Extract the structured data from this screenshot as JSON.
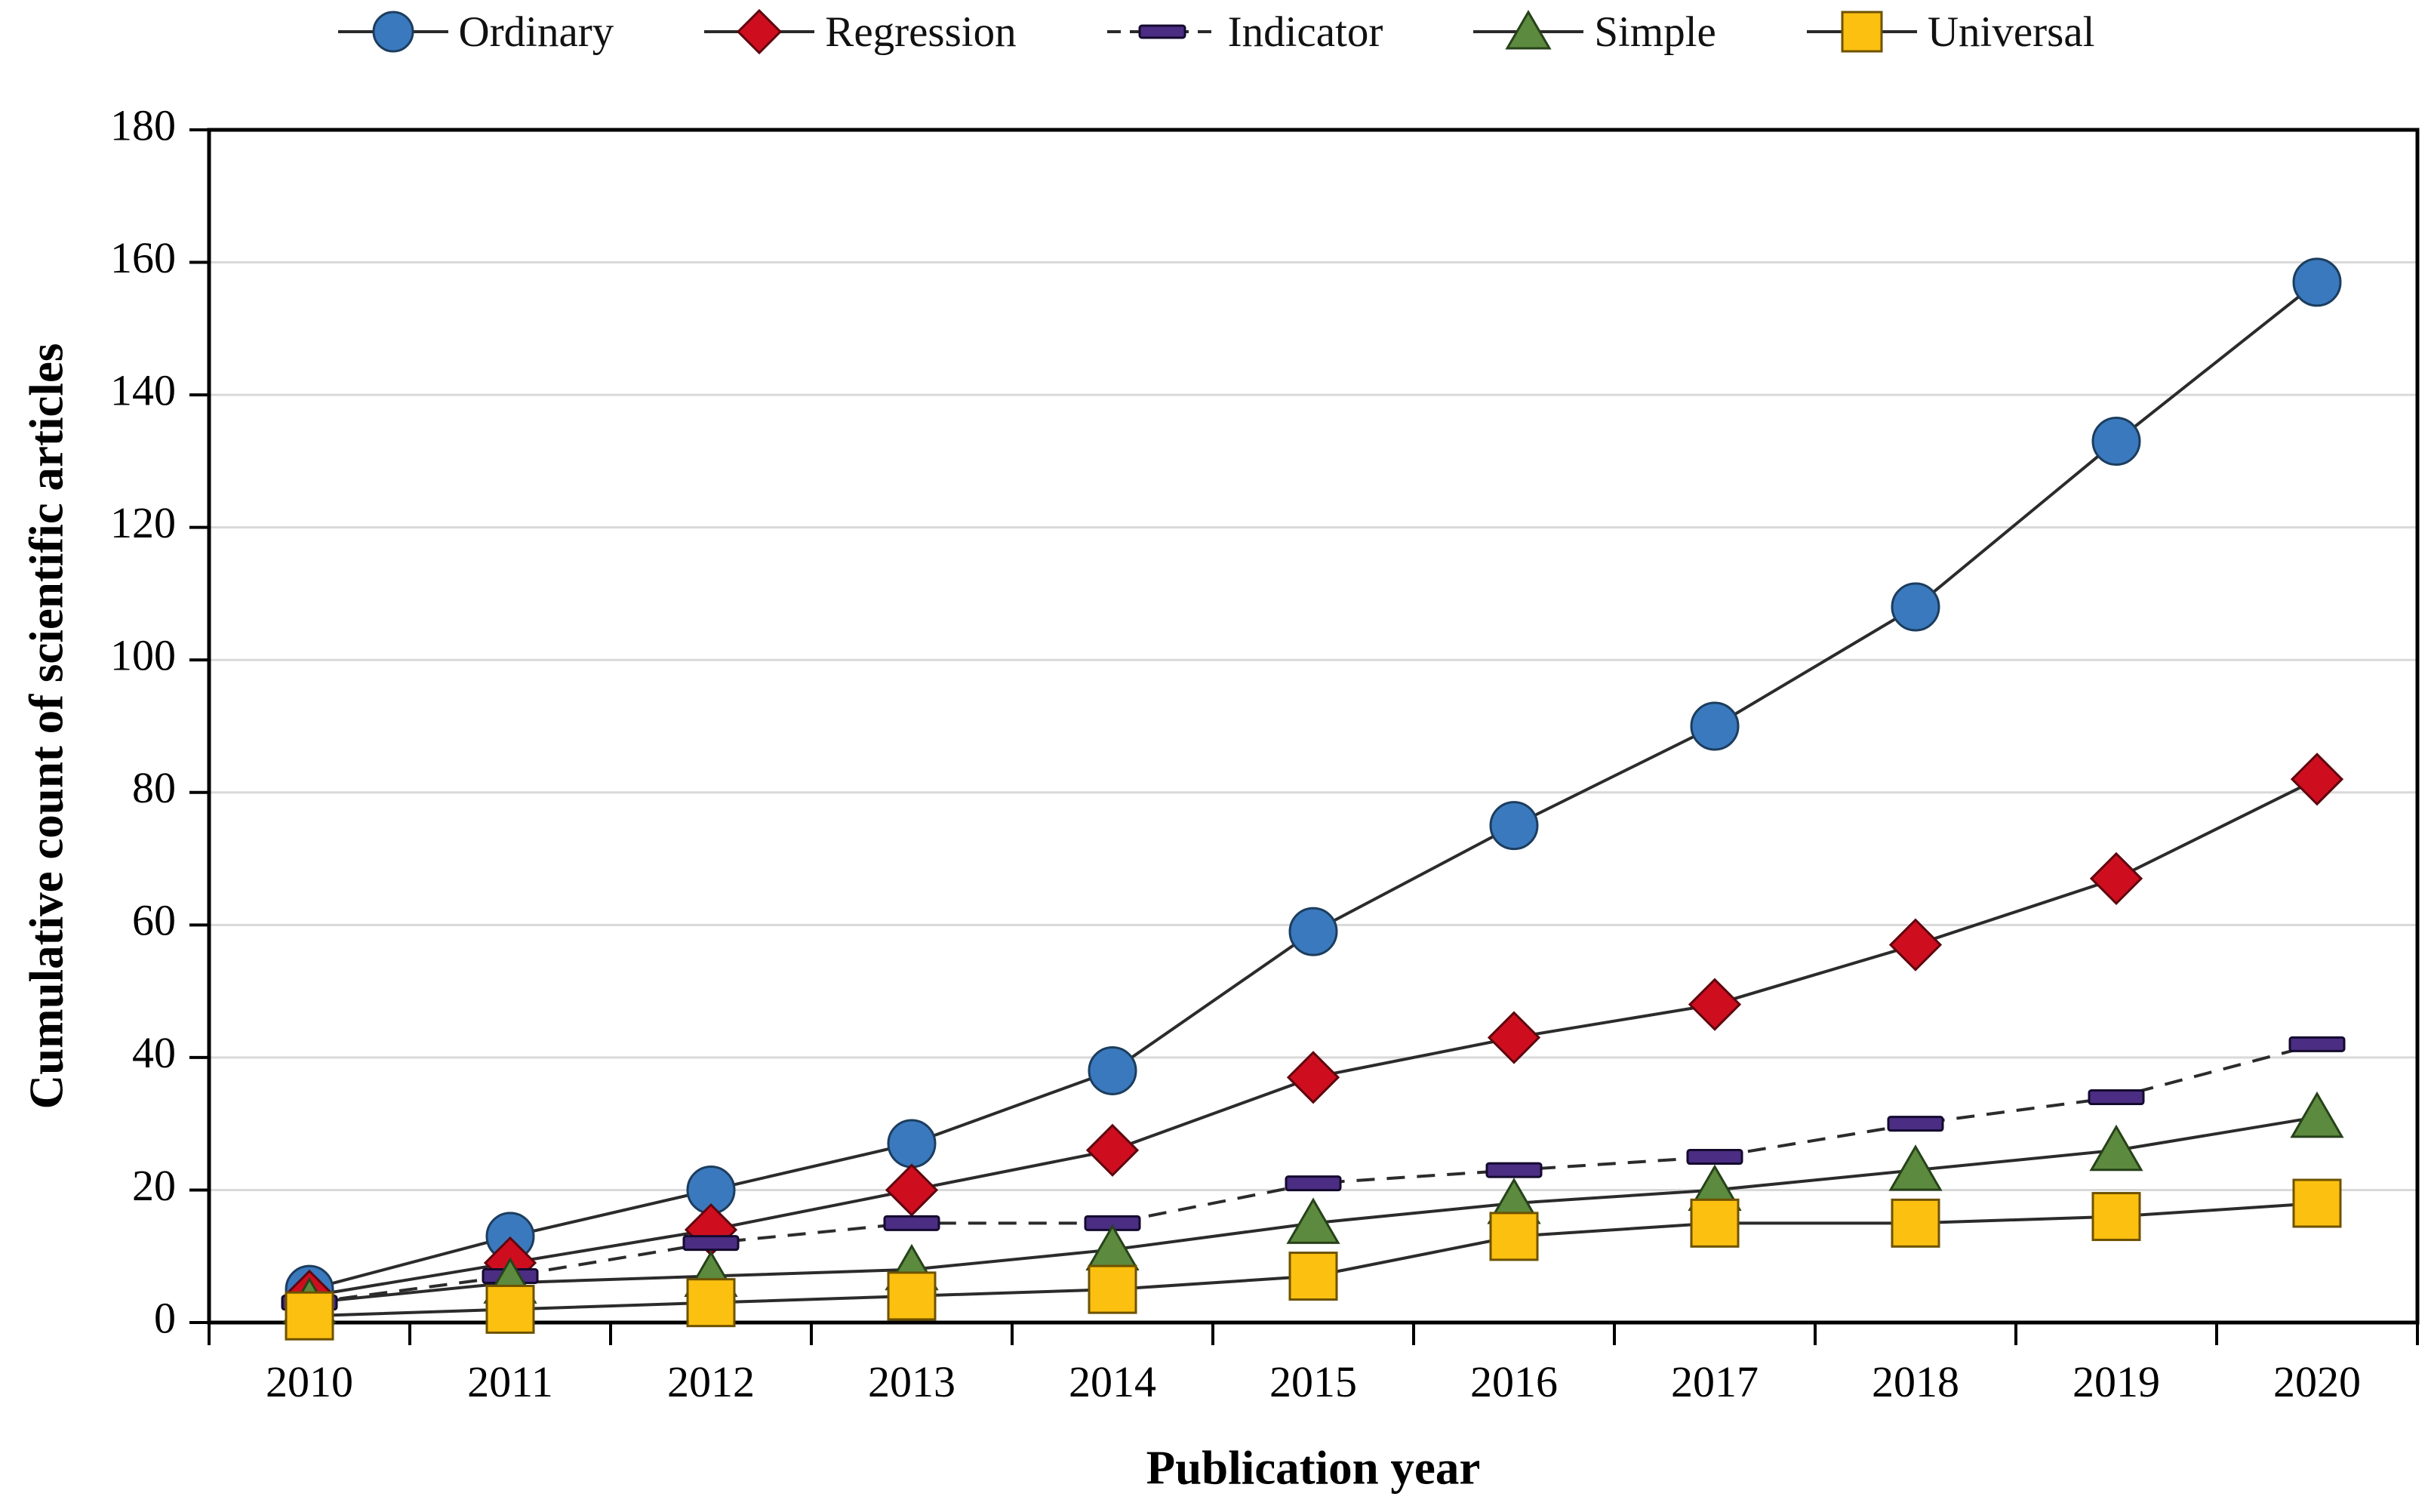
{
  "chart_data": {
    "type": "line",
    "title": "",
    "xlabel": "Publication year",
    "ylabel": "Cumulative count of scientific articles",
    "categories": [
      "2010",
      "2011",
      "2012",
      "2013",
      "2014",
      "2015",
      "2016",
      "2017",
      "2018",
      "2019",
      "2020"
    ],
    "ylim": [
      0,
      180
    ],
    "yticks": [
      0,
      20,
      40,
      60,
      80,
      100,
      120,
      140,
      160,
      180
    ],
    "grid": "horizontal",
    "legend_position": "top-center",
    "series": [
      {
        "name": "Ordinary",
        "marker": "circle",
        "color": "#3A79BD",
        "marker_stroke": "#1c3d5e",
        "line_style": "solid",
        "values": [
          5,
          13,
          20,
          27,
          38,
          59,
          75,
          90,
          108,
          133,
          157
        ]
      },
      {
        "name": "Regression",
        "marker": "diamond",
        "color": "#CE0E1F",
        "marker_stroke": "#5e060e",
        "line_style": "solid",
        "values": [
          4,
          9,
          14,
          20,
          26,
          37,
          43,
          48,
          57,
          67,
          82
        ]
      },
      {
        "name": "Indicator",
        "marker": "dash",
        "color": "#4B2D83",
        "marker_stroke": "#140a2e",
        "line_style": "dashed",
        "values": [
          3,
          7,
          12,
          15,
          15,
          21,
          23,
          25,
          30,
          34,
          42
        ]
      },
      {
        "name": "Simple",
        "marker": "triangle",
        "color": "#5C8A3E",
        "marker_stroke": "#27421a",
        "line_style": "solid",
        "values": [
          3,
          6,
          7,
          8,
          11,
          15,
          18,
          20,
          23,
          26,
          31
        ]
      },
      {
        "name": "Universal",
        "marker": "square",
        "color": "#FCC011",
        "marker_stroke": "#6e5200",
        "line_style": "solid",
        "values": [
          1,
          2,
          3,
          4,
          5,
          7,
          13,
          15,
          15,
          16,
          18
        ]
      }
    ]
  },
  "style_colors": {
    "background": "#FFFFFF",
    "gridline": "#D9D9D9",
    "axis": "#000000",
    "series_line": "#2B2B2B",
    "text": "#000000"
  }
}
